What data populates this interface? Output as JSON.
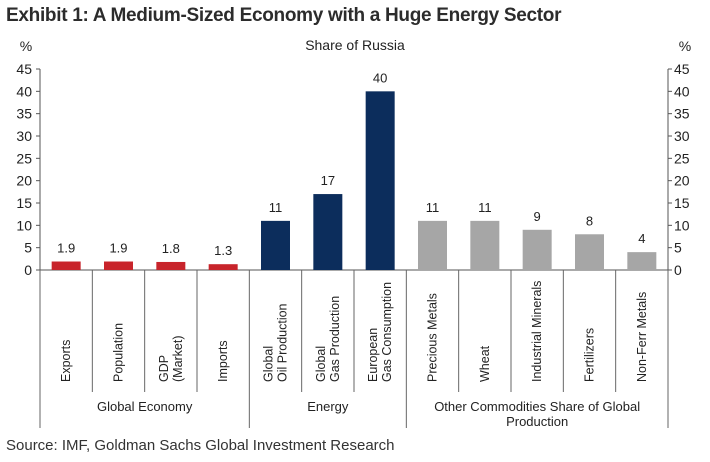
{
  "title": "Exhibit 1: A Medium-Sized Economy with a Huge Energy Sector",
  "source": "Source: IMF, Goldman Sachs Global Investment Research",
  "chart_data": {
    "type": "bar",
    "subtitle": "Share of Russia",
    "y_unit_left": "%",
    "y_unit_right": "%",
    "ylim": [
      0,
      45
    ],
    "yticks": [
      0,
      5,
      10,
      15,
      20,
      25,
      30,
      35,
      40,
      45
    ],
    "grid": false,
    "legend": "none",
    "bars": [
      {
        "label": [
          "Exports"
        ],
        "value": 1.9,
        "value_label": "1.9",
        "group": 0
      },
      {
        "label": [
          "Population"
        ],
        "value": 1.9,
        "value_label": "1.9",
        "group": 0
      },
      {
        "label": [
          "GDP",
          "(Market)"
        ],
        "value": 1.8,
        "value_label": "1.8",
        "group": 0
      },
      {
        "label": [
          "Imports"
        ],
        "value": 1.3,
        "value_label": "1.3",
        "group": 0
      },
      {
        "label": [
          "Global",
          "Oil Production"
        ],
        "value": 11,
        "value_label": "11",
        "group": 1
      },
      {
        "label": [
          "Global",
          "Gas Production"
        ],
        "value": 17,
        "value_label": "17",
        "group": 1
      },
      {
        "label": [
          "European",
          "Gas Consumption"
        ],
        "value": 40,
        "value_label": "40",
        "group": 1
      },
      {
        "label": [
          "Precious Metals"
        ],
        "value": 11,
        "value_label": "11",
        "group": 2
      },
      {
        "label": [
          "Wheat"
        ],
        "value": 11,
        "value_label": "11",
        "group": 2
      },
      {
        "label": [
          "Industrial Minerals"
        ],
        "value": 9,
        "value_label": "9",
        "group": 2
      },
      {
        "label": [
          "Fertilizers"
        ],
        "value": 8,
        "value_label": "8",
        "group": 2
      },
      {
        "label": [
          "Non-Ferr Metals"
        ],
        "value": 4,
        "value_label": "4",
        "group": 2
      }
    ],
    "groups": [
      {
        "name": [
          "Global Economy"
        ],
        "color": "#c8242b"
      },
      {
        "name": [
          "Energy"
        ],
        "color": "#0c2d5c"
      },
      {
        "name": [
          "Other Commodities Share of Global",
          "Production"
        ],
        "color": "#a6a6a6"
      }
    ]
  }
}
